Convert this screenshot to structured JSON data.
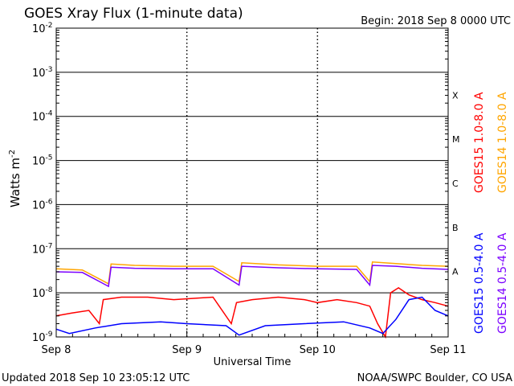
{
  "chart_data": {
    "type": "line",
    "title": "GOES Xray Flux (1-minute data)",
    "begin_label": "Begin:  2018 Sep 8 0000 UTC",
    "xlabel": "Universal Time",
    "ylabel": "Watts m",
    "ylabel_exponent": "-2",
    "y_scale": "log",
    "ylim": [
      1e-09,
      0.01
    ],
    "y_ticks": [
      {
        "mantissa": "10",
        "exponent": "-2"
      },
      {
        "mantissa": "10",
        "exponent": "-3"
      },
      {
        "mantissa": "10",
        "exponent": "-4"
      },
      {
        "mantissa": "10",
        "exponent": "-5"
      },
      {
        "mantissa": "10",
        "exponent": "-6"
      },
      {
        "mantissa": "10",
        "exponent": "-7"
      },
      {
        "mantissa": "10",
        "exponent": "-8"
      },
      {
        "mantissa": "10",
        "exponent": "-9"
      }
    ],
    "x_range_days": [
      0,
      3
    ],
    "x_ticks": [
      {
        "day": 0,
        "label": "Sep 8"
      },
      {
        "day": 1,
        "label": "Sep 9"
      },
      {
        "day": 2,
        "label": "Sep 10"
      },
      {
        "day": 3,
        "label": "Sep 11"
      }
    ],
    "flare_classes": [
      {
        "label": "X",
        "flux": 0.0001
      },
      {
        "label": "M",
        "flux": 1e-05
      },
      {
        "label": "C",
        "flux": 1e-06
      },
      {
        "label": "B",
        "flux": 1e-07
      },
      {
        "label": "A",
        "flux": 1e-08
      }
    ],
    "grid": true,
    "legend_position": "right",
    "series": [
      {
        "name": "GOES15 1.0-8.0 A",
        "color": "#ff0000",
        "day": [
          0.0,
          0.12,
          0.25,
          0.33,
          0.36,
          0.5,
          0.7,
          0.9,
          1.2,
          1.34,
          1.38,
          1.5,
          1.7,
          1.9,
          2.0,
          2.15,
          2.3,
          2.4,
          2.46,
          2.52,
          2.56,
          2.62,
          2.7,
          2.8,
          2.9,
          3.0
        ],
        "flux": [
          3e-09,
          3.5e-09,
          4e-09,
          2e-09,
          7e-09,
          8e-09,
          8e-09,
          7e-09,
          8e-09,
          2e-09,
          6e-09,
          7e-09,
          8e-09,
          7e-09,
          6e-09,
          7e-09,
          6e-09,
          5e-09,
          2e-09,
          1e-09,
          1e-08,
          1.3e-08,
          9e-09,
          7e-09,
          6e-09,
          5e-09
        ]
      },
      {
        "name": "GOES14 1.0-8.0 A",
        "color": "#ffa500",
        "day": [
          0.0,
          0.2,
          0.4,
          0.42,
          0.6,
          0.9,
          1.2,
          1.4,
          1.42,
          1.7,
          2.0,
          2.3,
          2.4,
          2.42,
          2.6,
          2.8,
          3.0
        ],
        "flux": [
          3.5e-08,
          3.3e-08,
          1.6e-08,
          4.5e-08,
          4.2e-08,
          4e-08,
          4e-08,
          1.8e-08,
          4.8e-08,
          4.3e-08,
          4e-08,
          4e-08,
          1.8e-08,
          5e-08,
          4.6e-08,
          4.2e-08,
          4e-08
        ]
      },
      {
        "name": "GOES15 0.5-4.0 A",
        "color": "#0000ff",
        "day": [
          0.0,
          0.1,
          0.3,
          0.5,
          0.8,
          1.0,
          1.3,
          1.4,
          1.6,
          1.9,
          2.2,
          2.4,
          2.5,
          2.6,
          2.7,
          2.8,
          2.9,
          3.0
        ],
        "flux": [
          1.5e-09,
          1.2e-09,
          1.6e-09,
          2e-09,
          2.2e-09,
          2e-09,
          1.8e-09,
          1.1e-09,
          1.8e-09,
          2e-09,
          2.2e-09,
          1.6e-09,
          1.2e-09,
          2.5e-09,
          7e-09,
          8e-09,
          4e-09,
          3e-09
        ]
      },
      {
        "name": "GOES14 0.5-4.0 A",
        "color": "#7b00ff",
        "day": [
          0.0,
          0.2,
          0.4,
          0.42,
          0.6,
          0.9,
          1.2,
          1.4,
          1.42,
          1.7,
          2.0,
          2.3,
          2.4,
          2.42,
          2.6,
          2.8,
          3.0
        ],
        "flux": [
          3e-08,
          2.9e-08,
          1.4e-08,
          3.8e-08,
          3.6e-08,
          3.5e-08,
          3.5e-08,
          1.5e-08,
          4e-08,
          3.7e-08,
          3.5e-08,
          3.4e-08,
          1.5e-08,
          4.2e-08,
          4e-08,
          3.6e-08,
          3.4e-08
        ]
      }
    ]
  },
  "footer": {
    "updated": "Updated 2018 Sep 10 23:05:12 UTC",
    "source": "NOAA/SWPC Boulder, CO USA"
  }
}
